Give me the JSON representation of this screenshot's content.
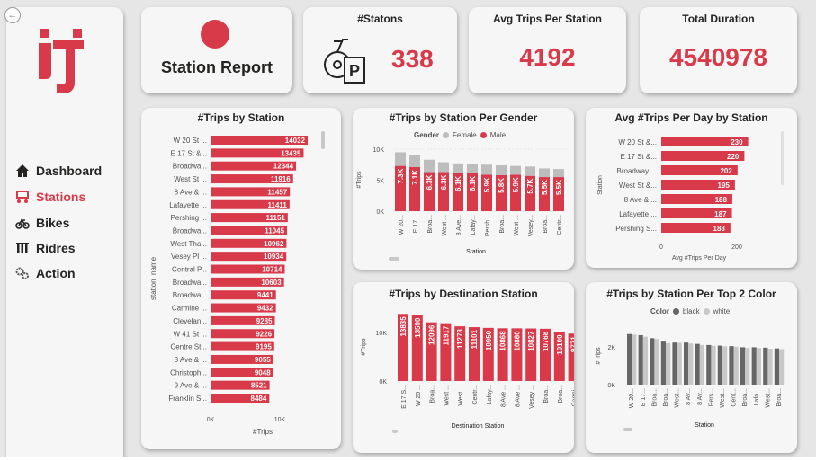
{
  "colors": {
    "accent": "#d93a4a",
    "female": "#bdbdbd",
    "male": "#d93a4a",
    "black": "#666666",
    "white": "#c8c8c8"
  },
  "nav": [
    {
      "label": "Dashboard",
      "icon": "home-icon",
      "active": false
    },
    {
      "label": "Stations",
      "icon": "station-icon",
      "active": true
    },
    {
      "label": "Bikes",
      "icon": "bike-icon",
      "active": false
    },
    {
      "label": "Ridres",
      "icon": "riders-icon",
      "active": false
    },
    {
      "label": "Action",
      "icon": "gears-icon",
      "active": false
    }
  ],
  "header": {
    "title": "Station Report"
  },
  "kpis": [
    {
      "title": "#Statons",
      "value": "338"
    },
    {
      "title": "Avg Trips Per Station",
      "value": "4192"
    },
    {
      "title": "Total Duration",
      "value": "4540978"
    }
  ],
  "trips_by_station": {
    "title": "#Trips by Station",
    "ylabel": "station_name",
    "xlabel": "#Trips",
    "ticks": [
      "0K",
      "10K"
    ],
    "categories": [
      "W 20 St ...",
      "E 17 St &...",
      "Broadwa...",
      "West St ...",
      "8 Ave & ...",
      "Lafayette ...",
      "Pershing ...",
      "Broadwa...",
      "West Tha...",
      "Vesey Pl ...",
      "Central P...",
      "Broadwa...",
      "Broadwa...",
      "Carmine ...",
      "Clevelan...",
      "W 41 St ...",
      "Centre St...",
      "8 Ave & ...",
      "Christoph...",
      "9 Ave & ...",
      "Franklin S..."
    ],
    "values": [
      14032,
      13435,
      12344,
      11916,
      11457,
      11411,
      11151,
      11045,
      10962,
      10934,
      10714,
      10603,
      9441,
      9432,
      9285,
      9226,
      9195,
      9055,
      9048,
      8521,
      8484
    ]
  },
  "gender_chart": {
    "title": "#Trips by Station Per Gender",
    "legend_title": "Gender",
    "female_label": "Female",
    "male_label": "Male",
    "yticks": [
      "10K",
      "5K",
      "0K"
    ],
    "ylabel": "#Trips",
    "xlabel": "Station",
    "categories": [
      "W 20...",
      "E 17...",
      "Broa...",
      "West ...",
      "8 Ave...",
      "Lafay...",
      "Persh...",
      "Broa...",
      "West ...",
      "Vesey...",
      "Broa...",
      "Centr..."
    ],
    "male": [
      7300,
      7100,
      6300,
      6300,
      6100,
      6100,
      5900,
      5800,
      5900,
      5700,
      5500,
      5500
    ],
    "male_labels": [
      "7.3K",
      "7.1K",
      "6.3K",
      "6.3K",
      "6.1K",
      "6.1K",
      "5.9K",
      "5.8K",
      "5.9K",
      "5.7K",
      "5.5K",
      "5.5K"
    ],
    "female": [
      2200,
      2000,
      2000,
      1600,
      1600,
      1500,
      1600,
      1600,
      1400,
      1500,
      1400,
      1300
    ]
  },
  "avg_per_day": {
    "title": "Avg #Trips Per Day by Station",
    "ylabel": "Station",
    "xlabel": "Avg #Trips Per Day",
    "ticks": [
      "0",
      "200"
    ],
    "categories": [
      "W 20 St &...",
      "E 17 St &...",
      "Broadway ...",
      "West St &...",
      "8 Ave & ...",
      "Lafayette ...",
      "Pershing S..."
    ],
    "values": [
      230,
      220,
      202,
      195,
      188,
      187,
      183
    ]
  },
  "destination": {
    "title": "#Trips by Destination Station",
    "ylabel": "#Trips",
    "xlabel": "Destination Station",
    "yticks": [
      "10K",
      "0K"
    ],
    "categories": [
      "E 17 S...",
      "W 20 ...",
      "Broa...",
      "West ...",
      "West ...",
      "Centr...",
      "Lafay...",
      "8 Ave ...",
      "8 Ave ...",
      "Vesey ...",
      "Broa...",
      "Broa...",
      "Carmi..."
    ],
    "values": [
      13835,
      13590,
      12096,
      11917,
      11273,
      11101,
      10950,
      10868,
      10860,
      10827,
      10768,
      10100,
      9771
    ]
  },
  "color_chart": {
    "title": "#Trips by Station Per Top 2 Color",
    "legend_title": "Color",
    "black_label": "black",
    "white_label": "white",
    "yticks": [
      "2K",
      "0K"
    ],
    "ylabel": "#Trips",
    "xlabel": "Station",
    "categories": [
      "W 20...",
      "E 17...",
      "Broa...",
      "Broa...",
      "West...",
      "8 Av...",
      "8 Av...",
      "Pers...",
      "West...",
      "Cent...",
      "Broa...",
      "Lafa...",
      "West...",
      "Broa..."
    ],
    "black": [
      2680,
      2620,
      2460,
      2280,
      2230,
      2230,
      2160,
      2100,
      2070,
      2040,
      1980,
      1980,
      1960,
      1920
    ],
    "white": [
      2650,
      2540,
      2420,
      2200,
      2220,
      2180,
      2100,
      2060,
      2030,
      2010,
      1950,
      1940,
      1900,
      1880
    ]
  }
}
